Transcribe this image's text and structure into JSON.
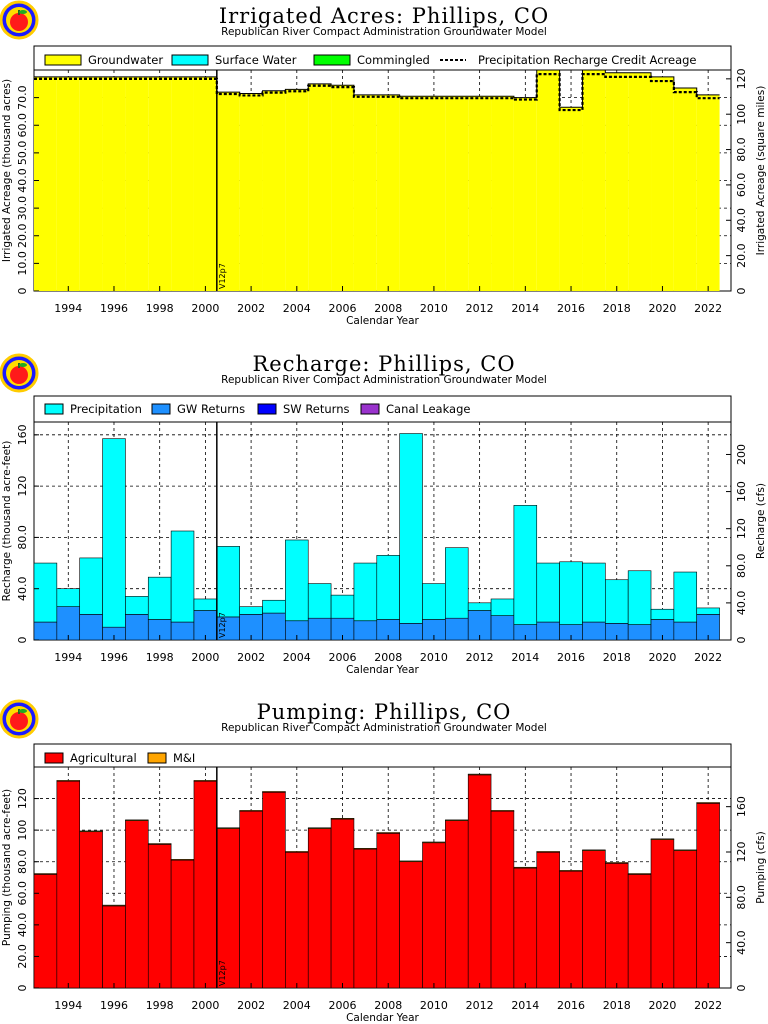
{
  "logo": {
    "description": "apple-icon"
  },
  "colors": {
    "groundwater": "#ffff00",
    "surface_water": "#00ffff",
    "commingled": "#00ff00",
    "precipitation": "#00ffff",
    "gw_returns": "#1e90ff",
    "sw_returns": "#0000ff",
    "canal_leakage": "#9932cc",
    "agricultural": "#ff0000",
    "mi": "#ffa500"
  },
  "chart_data": [
    {
      "type": "bar",
      "title": "Irrigated Acres: Phillips, CO",
      "subtitle": "Republican River Compact Administration Groundwater Model",
      "xlabel": "Calendar Year",
      "ylabel": "Irrigated Acreage (thousand acres)",
      "y2label": "Irrigated Acreage (square miles)",
      "xlim": [
        1992.5,
        2023
      ],
      "ylim": [
        0,
        80
      ],
      "y2lim": [
        0,
        125
      ],
      "x_ticks": [
        "1994",
        "1996",
        "1998",
        "2000",
        "2002",
        "2004",
        "2006",
        "2008",
        "2010",
        "2012",
        "2014",
        "2016",
        "2018",
        "2020",
        "2022"
      ],
      "y_ticks": [
        "10.0",
        "20.0",
        "30.0",
        "40.0",
        "50.0",
        "60.0",
        "70.0"
      ],
      "y2_ticks": [
        "20.0",
        "40.0",
        "60.0",
        "80.0",
        "100",
        "120"
      ],
      "grid": true,
      "annotation": "V12p7",
      "annotation_year": 2000.5,
      "legend": [
        "Groundwater",
        "Surface Water",
        "Commingled",
        "Precipitation Recharge Credit Acreage"
      ],
      "series_groundwater": {
        "x": [
          1993,
          1994,
          1995,
          1996,
          1997,
          1998,
          1999,
          2000,
          2001,
          2002,
          2003,
          2004,
          2005,
          2006,
          2007,
          2008,
          2009,
          2010,
          2011,
          2012,
          2013,
          2014,
          2015,
          2016,
          2017,
          2018,
          2019,
          2020,
          2021,
          2022
        ],
        "values": [
          77.5,
          77.5,
          77.5,
          77.5,
          77.5,
          77.5,
          77.5,
          77.5,
          72.0,
          71.5,
          72.5,
          73.0,
          75.0,
          74.5,
          71.0,
          71.0,
          70.5,
          70.5,
          70.5,
          70.5,
          70.5,
          70.0,
          80.0,
          66.5,
          80.0,
          79.0,
          79.0,
          77.5,
          73.5,
          71.0
        ]
      },
      "series_precip_credit": {
        "x": [
          1993,
          1994,
          1995,
          1996,
          1997,
          1998,
          1999,
          2000,
          2001,
          2002,
          2003,
          2004,
          2005,
          2006,
          2007,
          2008,
          2009,
          2010,
          2011,
          2012,
          2013,
          2014,
          2015,
          2016,
          2017,
          2018,
          2019,
          2020,
          2021,
          2022
        ],
        "values": [
          76.8,
          76.8,
          76.8,
          76.8,
          76.8,
          76.8,
          76.8,
          76.8,
          71.3,
          70.8,
          71.8,
          72.3,
          74.3,
          73.8,
          70.3,
          70.3,
          69.8,
          69.8,
          69.8,
          69.8,
          69.8,
          69.3,
          78.5,
          65.5,
          78.5,
          77.5,
          77.5,
          76.0,
          72.0,
          69.8
        ]
      }
    },
    {
      "type": "bar",
      "title": "Recharge: Phillips, CO",
      "subtitle": "Republican River Compact Administration Groundwater Model",
      "xlabel": "Calendar Year",
      "ylabel": "Recharge (thousand acre-feet)",
      "y2label": "Recharge (cfs)",
      "xlim": [
        1992.5,
        2023
      ],
      "ylim": [
        0,
        170
      ],
      "y2lim": [
        0,
        235
      ],
      "x_ticks": [
        "1994",
        "1996",
        "1998",
        "2000",
        "2002",
        "2004",
        "2006",
        "2008",
        "2010",
        "2012",
        "2014",
        "2016",
        "2018",
        "2020",
        "2022"
      ],
      "y_ticks": [
        "40.0",
        "80.0",
        "120",
        "160"
      ],
      "y2_ticks": [
        "40.0",
        "80.0",
        "120",
        "160",
        "200"
      ],
      "grid": true,
      "annotation": "V12p7",
      "annotation_year": 2000.5,
      "legend": [
        "Precipitation",
        "GW Returns",
        "SW Returns",
        "Canal Leakage"
      ],
      "categories": [
        "1993",
        "1994",
        "1995",
        "1996",
        "1997",
        "1998",
        "1999",
        "2000",
        "2001",
        "2002",
        "2003",
        "2004",
        "2005",
        "2006",
        "2007",
        "2008",
        "2009",
        "2010",
        "2011",
        "2012",
        "2013",
        "2014",
        "2015",
        "2016",
        "2017",
        "2018",
        "2019",
        "2020",
        "2021",
        "2022"
      ],
      "series": [
        {
          "name": "GW Returns",
          "values": [
            14,
            26,
            20,
            10,
            20,
            16,
            14,
            23,
            18,
            20,
            21,
            15,
            17,
            17,
            15,
            16,
            13,
            16,
            17,
            23,
            19,
            12,
            14,
            12,
            14,
            13,
            12,
            16,
            14,
            20
          ]
        },
        {
          "name": "Precipitation",
          "values": [
            46,
            14,
            44,
            147,
            14,
            33,
            71,
            9,
            55,
            6,
            10,
            63,
            27,
            18,
            45,
            50,
            148,
            28,
            55,
            6,
            13,
            93,
            46,
            49,
            46,
            34,
            42,
            8,
            39,
            5
          ]
        }
      ]
    },
    {
      "type": "bar",
      "title": "Pumping: Phillips, CO",
      "subtitle": "Republican River Compact Administration Groundwater Model",
      "xlabel": "Calendar Year",
      "ylabel": "Pumping (thousand acre-feet)",
      "y2label": "Pumping (cfs)",
      "xlim": [
        1992.5,
        2023
      ],
      "ylim": [
        0,
        140
      ],
      "y2lim": [
        0,
        195
      ],
      "x_ticks": [
        "1994",
        "1996",
        "1998",
        "2000",
        "2002",
        "2004",
        "2006",
        "2008",
        "2010",
        "2012",
        "2014",
        "2016",
        "2018",
        "2020",
        "2022"
      ],
      "y_ticks": [
        "20.0",
        "40.0",
        "60.0",
        "80.0",
        "100",
        "120"
      ],
      "y2_ticks": [
        "40.0",
        "80.0",
        "120",
        "160"
      ],
      "grid": true,
      "annotation": "V12p7",
      "annotation_year": 2000.5,
      "legend": [
        "Agricultural",
        "M&I"
      ],
      "categories": [
        "1993",
        "1994",
        "1995",
        "1996",
        "1997",
        "1998",
        "1999",
        "2000",
        "2001",
        "2002",
        "2003",
        "2004",
        "2005",
        "2006",
        "2007",
        "2008",
        "2009",
        "2010",
        "2011",
        "2012",
        "2013",
        "2014",
        "2015",
        "2016",
        "2017",
        "2018",
        "2019",
        "2020",
        "2021",
        "2022"
      ],
      "series": [
        {
          "name": "Agricultural",
          "values": [
            72,
            131,
            99,
            52,
            106,
            91,
            81,
            131,
            101,
            112,
            124,
            86,
            101,
            107,
            88,
            98,
            80,
            92,
            106,
            135,
            112,
            76,
            86,
            74,
            87,
            79,
            72,
            94,
            87,
            117
          ]
        },
        {
          "name": "M&I",
          "values": [
            0.5,
            0.5,
            0.5,
            0.5,
            0.5,
            0.5,
            0.5,
            0.5,
            0.5,
            0.5,
            0.5,
            0.5,
            0.5,
            0.5,
            0.5,
            0.5,
            0.5,
            0.5,
            0.5,
            0.5,
            0.5,
            0.5,
            0.5,
            0.5,
            0.5,
            0.5,
            0.5,
            0.5,
            0.5,
            0.5
          ]
        }
      ]
    }
  ]
}
